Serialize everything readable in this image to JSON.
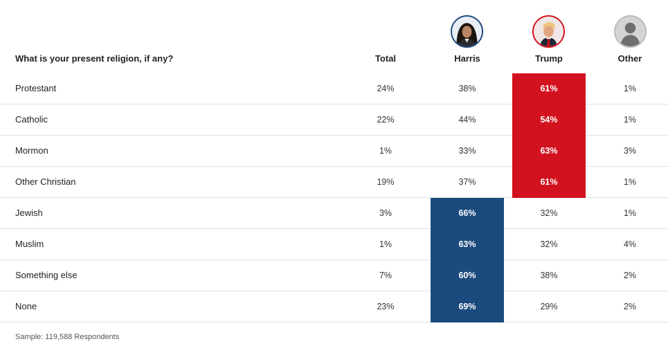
{
  "chart_data": {
    "type": "table",
    "question": "What is your present religion, if any?",
    "columns": [
      {
        "key": "total",
        "label": "Total"
      },
      {
        "key": "harris",
        "label": "Harris"
      },
      {
        "key": "trump",
        "label": "Trump"
      },
      {
        "key": "other",
        "label": "Other"
      }
    ],
    "rows": [
      {
        "label": "Protestant",
        "total": "24%",
        "harris": "38%",
        "trump": "61%",
        "other": "1%",
        "winner": "trump"
      },
      {
        "label": "Catholic",
        "total": "22%",
        "harris": "44%",
        "trump": "54%",
        "other": "1%",
        "winner": "trump"
      },
      {
        "label": "Mormon",
        "total": "1%",
        "harris": "33%",
        "trump": "63%",
        "other": "3%",
        "winner": "trump"
      },
      {
        "label": "Other Christian",
        "total": "19%",
        "harris": "37%",
        "trump": "61%",
        "other": "1%",
        "winner": "trump"
      },
      {
        "label": "Jewish",
        "total": "3%",
        "harris": "66%",
        "trump": "32%",
        "other": "1%",
        "winner": "harris"
      },
      {
        "label": "Muslim",
        "total": "1%",
        "harris": "63%",
        "trump": "32%",
        "other": "4%",
        "winner": "harris"
      },
      {
        "label": "Something else",
        "total": "7%",
        "harris": "60%",
        "trump": "38%",
        "other": "2%",
        "winner": "harris"
      },
      {
        "label": "None",
        "total": "23%",
        "harris": "69%",
        "trump": "29%",
        "other": "2%",
        "winner": "harris"
      }
    ],
    "footnote": "Sample: 119,588 Respondents"
  },
  "colors": {
    "harris": "#1b4a7f",
    "trump": "#d2121e",
    "other": "#b9b9b9",
    "divider": "#e2e2e2"
  },
  "icons": {
    "harris": "harris-avatar-icon",
    "trump": "trump-avatar-icon",
    "other": "generic-person-icon"
  }
}
